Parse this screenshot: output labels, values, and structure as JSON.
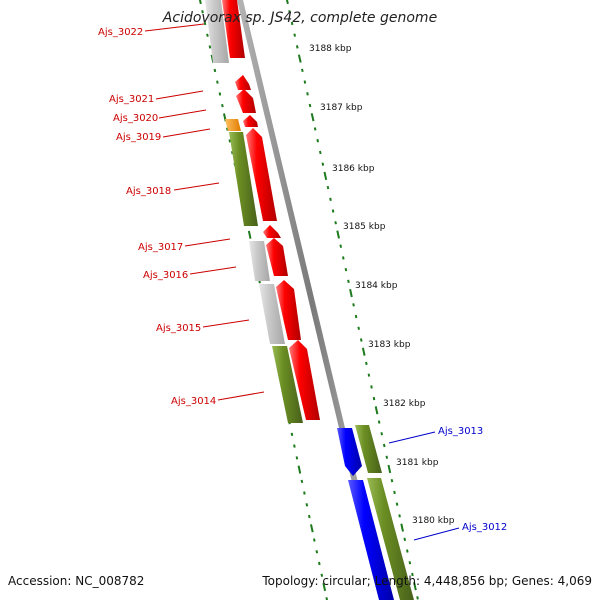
{
  "title": "Acidovorax sp. JS42, complete genome",
  "footer": {
    "accession": "Accession: NC_008782",
    "summary": "Topology: circular; Length: 4,448,856 bp; Genes: 4,069"
  },
  "colors": {
    "background": "#ffffff",
    "axis_line": "#8c8c8c",
    "tick": "#1d7a1d",
    "forward_gene": "#ff0000",
    "reverse_gene": "#0000ff",
    "cds_green": "#6b8e23",
    "orange": "#ff9900",
    "gray": "#c8c8c8",
    "label_red": "#cc0000",
    "label_blue": "#0000cc"
  },
  "scale_labels": [
    "3188 kbp",
    "3187 kbp",
    "3186 kbp",
    "3185 kbp",
    "3184 kbp",
    "3183 kbp",
    "3182 kbp",
    "3181 kbp",
    "3180 kbp"
  ],
  "gene_labels_red": [
    "Ajs_3022",
    "Ajs_3021",
    "Ajs_3020",
    "Ajs_3019",
    "Ajs_3018",
    "Ajs_3017",
    "Ajs_3016",
    "Ajs_3015",
    "Ajs_3014"
  ],
  "gene_labels_blue": [
    "Ajs_3013",
    "Ajs_3012"
  ]
}
